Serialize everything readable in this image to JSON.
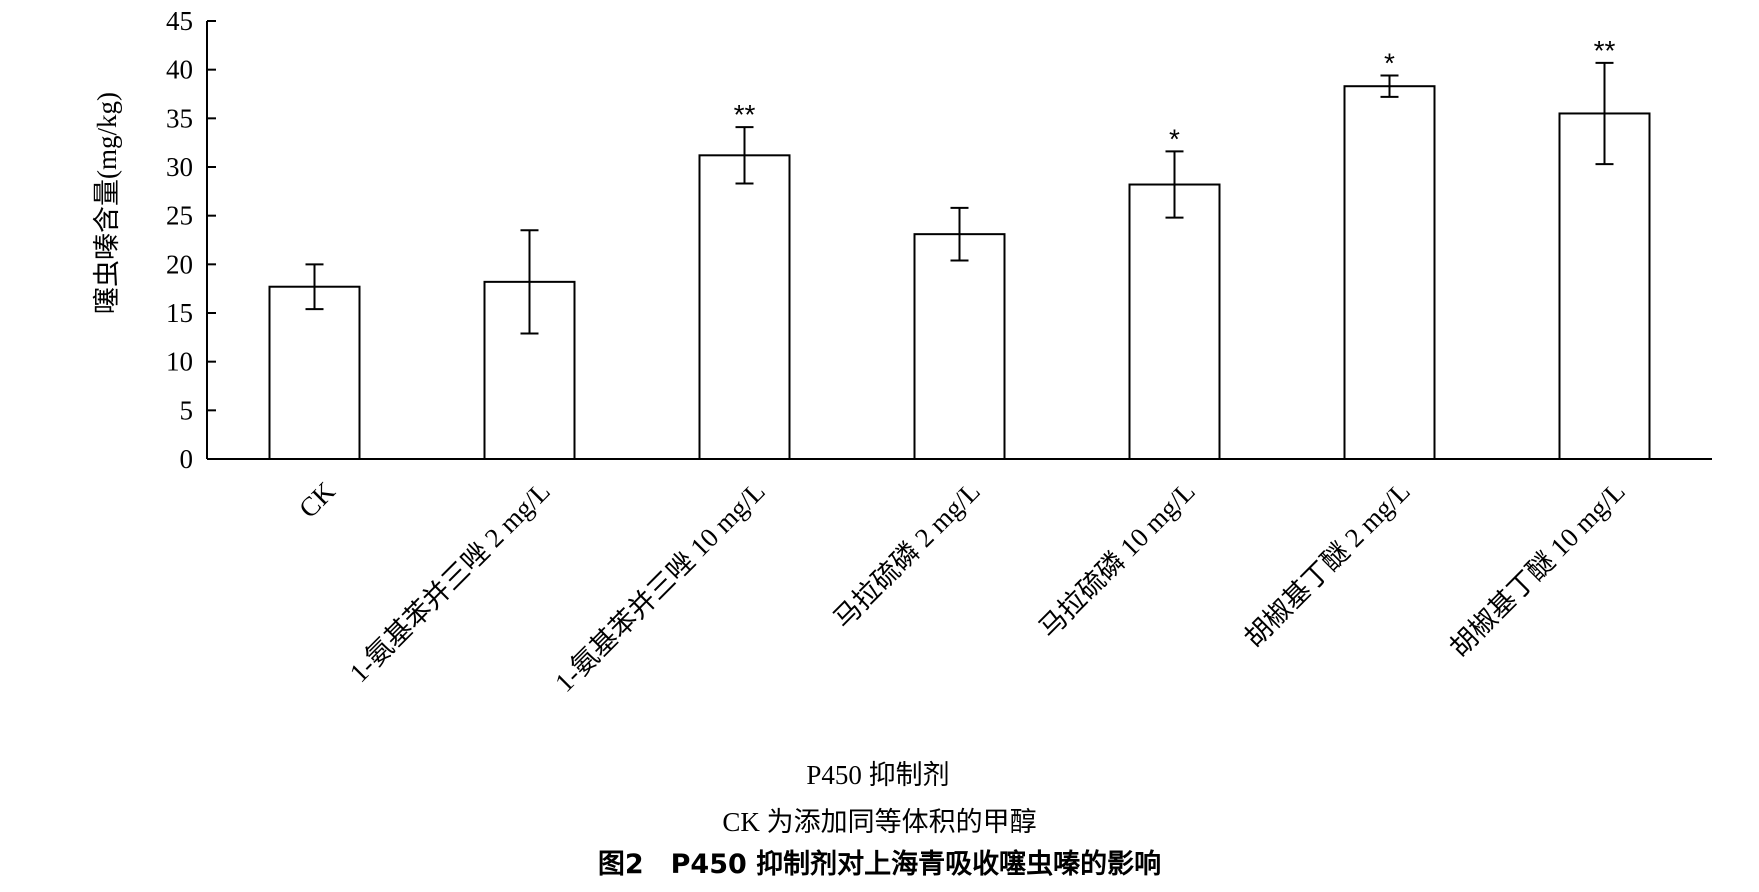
{
  "chart_data": {
    "type": "bar",
    "title": "",
    "xlabel": "P450 抑制剂",
    "ylabel": "噻虫嗪含量(mg/kg)",
    "ylim": [
      0,
      45
    ],
    "yticks": [
      0,
      5,
      10,
      15,
      20,
      25,
      30,
      35,
      40,
      45
    ],
    "grid": false,
    "categories": [
      "CK",
      "1-氨基苯并三唑 2 mg/L",
      "1-氨基苯并三唑 10 mg/L",
      "马拉硫磷 2 mg/L",
      "马拉硫磷 10 mg/L",
      "胡椒基丁醚 2 mg/L",
      "胡椒基丁醚 10 mg/L"
    ],
    "values": [
      17.7,
      18.2,
      31.2,
      23.1,
      28.2,
      38.3,
      35.5
    ],
    "error": [
      2.3,
      5.3,
      2.9,
      2.7,
      3.4,
      1.1,
      5.2
    ],
    "significance": [
      "",
      "",
      "**",
      "",
      "*",
      "*",
      "**"
    ],
    "bar_fill": "#ffffff",
    "bar_stroke": "#000000"
  },
  "note": "CK 为添加同等体积的甲醇",
  "caption": "图2　P450 抑制剂对上海青吸收噻虫嗪的影响"
}
